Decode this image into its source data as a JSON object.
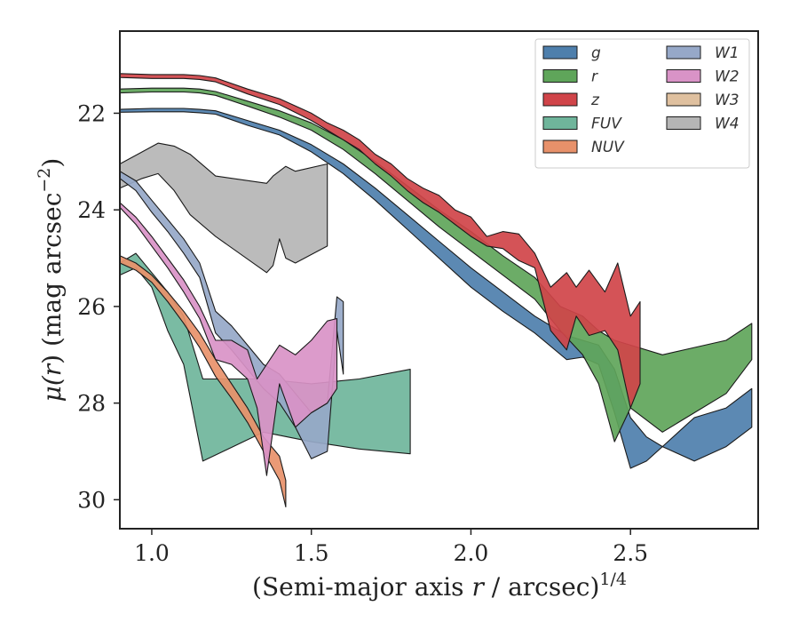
{
  "chart_data": {
    "type": "area",
    "title": "",
    "xlabel_main": "(Semi-major axis ",
    "xlabel_var": "r",
    "xlabel_rest": " / arcsec)",
    "xlabel_sup": "1/4",
    "ylabel_pre": "μ(",
    "ylabel_var": "r",
    "ylabel_post": ") (mag arcsec",
    "ylabel_sup": "−2",
    "ylabel_close": ")",
    "xlim": [
      0.9,
      2.9
    ],
    "ylim": [
      30.6,
      20.3
    ],
    "y_inverted": true,
    "xticks": [
      1.0,
      1.5,
      2.0,
      2.5
    ],
    "xtick_labels": [
      "1.0",
      "1.5",
      "2.0",
      "2.5"
    ],
    "yticks": [
      22,
      24,
      26,
      28,
      30
    ],
    "ytick_labels": [
      "22",
      "24",
      "26",
      "28",
      "30"
    ],
    "grid": false,
    "legend": {
      "placement": "top-right",
      "columns": 2
    },
    "series": [
      {
        "name": "W4",
        "color": "#b5b5b5",
        "upper": [
          [
            0.9,
            23.05
          ],
          [
            0.97,
            22.8
          ],
          [
            1.02,
            22.62
          ],
          [
            1.07,
            22.68
          ],
          [
            1.12,
            22.85
          ],
          [
            1.2,
            23.3
          ],
          [
            1.36,
            23.45
          ],
          [
            1.38,
            23.3
          ],
          [
            1.42,
            23.1
          ],
          [
            1.45,
            23.2
          ],
          [
            1.55,
            23.05
          ]
        ],
        "lower": [
          [
            0.9,
            23.55
          ],
          [
            0.97,
            23.35
          ],
          [
            1.02,
            23.25
          ],
          [
            1.07,
            23.6
          ],
          [
            1.12,
            24.1
          ],
          [
            1.2,
            24.55
          ],
          [
            1.36,
            25.3
          ],
          [
            1.38,
            25.15
          ],
          [
            1.4,
            24.6
          ],
          [
            1.42,
            25.0
          ],
          [
            1.45,
            25.1
          ],
          [
            1.55,
            24.75
          ]
        ]
      },
      {
        "name": "FUV",
        "color": "#6fb59b",
        "upper": [
          [
            0.9,
            25.1
          ],
          [
            0.95,
            24.9
          ],
          [
            1.0,
            25.3
          ],
          [
            1.05,
            25.7
          ],
          [
            1.1,
            26.2
          ],
          [
            1.16,
            27.5
          ],
          [
            1.35,
            27.5
          ],
          [
            1.5,
            27.6
          ],
          [
            1.65,
            27.5
          ],
          [
            1.81,
            27.3
          ]
        ],
        "lower": [
          [
            0.9,
            25.35
          ],
          [
            0.95,
            25.2
          ],
          [
            1.0,
            25.6
          ],
          [
            1.05,
            26.5
          ],
          [
            1.1,
            27.2
          ],
          [
            1.16,
            29.2
          ],
          [
            1.35,
            28.6
          ],
          [
            1.5,
            28.8
          ],
          [
            1.65,
            28.95
          ],
          [
            1.81,
            29.05
          ]
        ]
      },
      {
        "name": "W1",
        "color": "#96a8c8",
        "upper": [
          [
            0.9,
            23.2
          ],
          [
            0.95,
            23.4
          ],
          [
            1.0,
            23.8
          ],
          [
            1.05,
            24.2
          ],
          [
            1.1,
            24.6
          ],
          [
            1.15,
            25.1
          ],
          [
            1.2,
            26.1
          ],
          [
            1.25,
            26.4
          ],
          [
            1.3,
            26.8
          ],
          [
            1.35,
            27.2
          ],
          [
            1.4,
            27.4
          ],
          [
            1.45,
            27.8
          ],
          [
            1.5,
            28.2
          ],
          [
            1.55,
            28.0
          ],
          [
            1.58,
            25.8
          ],
          [
            1.6,
            25.9
          ]
        ],
        "lower": [
          [
            0.9,
            23.35
          ],
          [
            0.95,
            23.6
          ],
          [
            1.0,
            24.05
          ],
          [
            1.05,
            24.45
          ],
          [
            1.1,
            24.9
          ],
          [
            1.15,
            25.4
          ],
          [
            1.2,
            26.55
          ],
          [
            1.25,
            26.9
          ],
          [
            1.3,
            27.3
          ],
          [
            1.35,
            27.7
          ],
          [
            1.4,
            28.0
          ],
          [
            1.45,
            28.5
          ],
          [
            1.5,
            29.15
          ],
          [
            1.55,
            29.0
          ],
          [
            1.58,
            26.5
          ],
          [
            1.6,
            27.4
          ]
        ]
      },
      {
        "name": "NUV",
        "color": "#e8916a",
        "upper": [
          [
            0.9,
            24.95
          ],
          [
            0.95,
            25.1
          ],
          [
            1.0,
            25.35
          ],
          [
            1.05,
            25.7
          ],
          [
            1.1,
            26.1
          ],
          [
            1.15,
            26.55
          ],
          [
            1.2,
            27.1
          ],
          [
            1.25,
            27.6
          ],
          [
            1.3,
            28.1
          ],
          [
            1.35,
            28.7
          ],
          [
            1.4,
            29.1
          ],
          [
            1.42,
            29.6
          ]
        ],
        "lower": [
          [
            0.9,
            25.1
          ],
          [
            0.95,
            25.25
          ],
          [
            1.0,
            25.5
          ],
          [
            1.05,
            25.9
          ],
          [
            1.1,
            26.35
          ],
          [
            1.15,
            26.85
          ],
          [
            1.2,
            27.45
          ],
          [
            1.25,
            27.9
          ],
          [
            1.3,
            28.4
          ],
          [
            1.35,
            29.0
          ],
          [
            1.4,
            29.6
          ],
          [
            1.42,
            30.15
          ]
        ]
      },
      {
        "name": "W2",
        "color": "#d993c7",
        "upper": [
          [
            0.9,
            23.85
          ],
          [
            0.95,
            24.15
          ],
          [
            1.0,
            24.55
          ],
          [
            1.05,
            25.0
          ],
          [
            1.1,
            25.45
          ],
          [
            1.15,
            26.0
          ],
          [
            1.2,
            26.7
          ],
          [
            1.25,
            26.7
          ],
          [
            1.3,
            26.9
          ],
          [
            1.33,
            27.5
          ],
          [
            1.36,
            27.2
          ],
          [
            1.4,
            26.8
          ],
          [
            1.45,
            27.0
          ],
          [
            1.5,
            26.7
          ],
          [
            1.55,
            26.3
          ],
          [
            1.58,
            26.25
          ]
        ],
        "lower": [
          [
            0.9,
            23.95
          ],
          [
            0.95,
            24.3
          ],
          [
            1.0,
            24.75
          ],
          [
            1.05,
            25.2
          ],
          [
            1.1,
            25.7
          ],
          [
            1.15,
            26.25
          ],
          [
            1.2,
            27.1
          ],
          [
            1.25,
            27.2
          ],
          [
            1.3,
            27.5
          ],
          [
            1.33,
            28.1
          ],
          [
            1.36,
            29.5
          ],
          [
            1.4,
            27.6
          ],
          [
            1.45,
            28.5
          ],
          [
            1.5,
            28.2
          ],
          [
            1.55,
            28.0
          ],
          [
            1.58,
            27.7
          ]
        ]
      },
      {
        "name": "g",
        "color": "#4e7fac",
        "upper": [
          [
            0.9,
            21.92
          ],
          [
            1.0,
            21.9
          ],
          [
            1.1,
            21.9
          ],
          [
            1.15,
            21.92
          ],
          [
            1.2,
            21.95
          ],
          [
            1.3,
            22.15
          ],
          [
            1.4,
            22.35
          ],
          [
            1.5,
            22.65
          ],
          [
            1.6,
            23.05
          ],
          [
            1.7,
            23.55
          ],
          [
            1.8,
            24.1
          ],
          [
            1.9,
            24.65
          ],
          [
            2.0,
            25.2
          ],
          [
            2.1,
            25.7
          ],
          [
            2.2,
            26.2
          ],
          [
            2.3,
            26.6
          ],
          [
            2.35,
            26.7
          ],
          [
            2.4,
            26.8
          ],
          [
            2.45,
            27.3
          ],
          [
            2.5,
            28.3
          ],
          [
            2.55,
            28.7
          ],
          [
            2.6,
            28.9
          ],
          [
            2.7,
            28.3
          ],
          [
            2.8,
            28.1
          ],
          [
            2.88,
            27.7
          ]
        ],
        "lower": [
          [
            0.9,
            21.98
          ],
          [
            1.0,
            21.97
          ],
          [
            1.1,
            21.97
          ],
          [
            1.15,
            21.99
          ],
          [
            1.2,
            22.02
          ],
          [
            1.3,
            22.25
          ],
          [
            1.4,
            22.45
          ],
          [
            1.5,
            22.8
          ],
          [
            1.6,
            23.25
          ],
          [
            1.7,
            23.8
          ],
          [
            1.8,
            24.4
          ],
          [
            1.9,
            25.0
          ],
          [
            2.0,
            25.6
          ],
          [
            2.1,
            26.1
          ],
          [
            2.2,
            26.55
          ],
          [
            2.3,
            27.1
          ],
          [
            2.35,
            27.05
          ],
          [
            2.4,
            27.2
          ],
          [
            2.45,
            28.2
          ],
          [
            2.5,
            29.35
          ],
          [
            2.55,
            29.2
          ],
          [
            2.6,
            28.9
          ],
          [
            2.7,
            29.2
          ],
          [
            2.8,
            28.9
          ],
          [
            2.88,
            28.5
          ]
        ]
      },
      {
        "name": "r",
        "color": "#5fa55a",
        "upper": [
          [
            0.9,
            21.5
          ],
          [
            1.0,
            21.48
          ],
          [
            1.1,
            21.48
          ],
          [
            1.15,
            21.5
          ],
          [
            1.2,
            21.55
          ],
          [
            1.3,
            21.75
          ],
          [
            1.4,
            21.95
          ],
          [
            1.5,
            22.2
          ],
          [
            1.6,
            22.55
          ],
          [
            1.7,
            23.0
          ],
          [
            1.8,
            23.5
          ],
          [
            1.9,
            24.0
          ],
          [
            2.0,
            24.45
          ],
          [
            2.1,
            24.95
          ],
          [
            2.2,
            25.4
          ],
          [
            2.28,
            26.0
          ],
          [
            2.35,
            26.2
          ],
          [
            2.4,
            26.5
          ],
          [
            2.45,
            26.7
          ],
          [
            2.5,
            26.8
          ],
          [
            2.6,
            27.0
          ],
          [
            2.7,
            26.85
          ],
          [
            2.8,
            26.7
          ],
          [
            2.88,
            26.35
          ]
        ],
        "lower": [
          [
            0.9,
            21.58
          ],
          [
            1.0,
            21.56
          ],
          [
            1.1,
            21.56
          ],
          [
            1.15,
            21.58
          ],
          [
            1.2,
            21.63
          ],
          [
            1.3,
            21.85
          ],
          [
            1.4,
            22.08
          ],
          [
            1.5,
            22.35
          ],
          [
            1.6,
            22.75
          ],
          [
            1.7,
            23.25
          ],
          [
            1.8,
            23.8
          ],
          [
            1.9,
            24.35
          ],
          [
            2.0,
            24.85
          ],
          [
            2.1,
            25.35
          ],
          [
            2.2,
            25.85
          ],
          [
            2.28,
            26.5
          ],
          [
            2.35,
            27.0
          ],
          [
            2.4,
            27.6
          ],
          [
            2.45,
            28.8
          ],
          [
            2.5,
            28.1
          ],
          [
            2.6,
            28.6
          ],
          [
            2.7,
            28.2
          ],
          [
            2.8,
            27.8
          ],
          [
            2.88,
            27.1
          ]
        ]
      },
      {
        "name": "z",
        "color": "#d04449",
        "upper": [
          [
            0.9,
            21.18
          ],
          [
            1.0,
            21.2
          ],
          [
            1.1,
            21.2
          ],
          [
            1.15,
            21.22
          ],
          [
            1.2,
            21.27
          ],
          [
            1.3,
            21.5
          ],
          [
            1.4,
            21.7
          ],
          [
            1.5,
            22.0
          ],
          [
            1.55,
            22.2
          ],
          [
            1.6,
            22.35
          ],
          [
            1.65,
            22.55
          ],
          [
            1.7,
            22.85
          ],
          [
            1.75,
            23.05
          ],
          [
            1.8,
            23.35
          ],
          [
            1.85,
            23.55
          ],
          [
            1.9,
            23.7
          ],
          [
            1.95,
            24.0
          ],
          [
            2.0,
            24.15
          ],
          [
            2.05,
            24.55
          ],
          [
            2.1,
            24.45
          ],
          [
            2.15,
            24.5
          ],
          [
            2.2,
            24.9
          ],
          [
            2.25,
            25.6
          ],
          [
            2.3,
            25.3
          ],
          [
            2.33,
            25.6
          ],
          [
            2.37,
            25.25
          ],
          [
            2.42,
            25.7
          ],
          [
            2.46,
            25.1
          ],
          [
            2.5,
            26.2
          ],
          [
            2.53,
            25.9
          ]
        ],
        "lower": [
          [
            0.9,
            21.26
          ],
          [
            1.0,
            21.28
          ],
          [
            1.1,
            21.28
          ],
          [
            1.15,
            21.3
          ],
          [
            1.2,
            21.35
          ],
          [
            1.3,
            21.6
          ],
          [
            1.4,
            21.82
          ],
          [
            1.5,
            22.15
          ],
          [
            1.55,
            22.35
          ],
          [
            1.6,
            22.55
          ],
          [
            1.65,
            22.75
          ],
          [
            1.7,
            23.05
          ],
          [
            1.75,
            23.3
          ],
          [
            1.8,
            23.6
          ],
          [
            1.85,
            23.85
          ],
          [
            1.9,
            24.05
          ],
          [
            1.95,
            24.3
          ],
          [
            2.0,
            24.55
          ],
          [
            2.05,
            24.75
          ],
          [
            2.1,
            24.8
          ],
          [
            2.15,
            25.05
          ],
          [
            2.2,
            25.2
          ],
          [
            2.25,
            26.5
          ],
          [
            2.3,
            26.9
          ],
          [
            2.33,
            26.2
          ],
          [
            2.37,
            26.6
          ],
          [
            2.42,
            26.5
          ],
          [
            2.46,
            26.9
          ],
          [
            2.5,
            28.1
          ],
          [
            2.53,
            27.6
          ]
        ]
      },
      {
        "name": "W3",
        "color": "#dfc09f",
        "upper": [],
        "lower": []
      }
    ],
    "legend_order": [
      "g",
      "r",
      "z",
      "FUV",
      "NUV",
      "W1",
      "W2",
      "W3",
      "W4"
    ]
  }
}
